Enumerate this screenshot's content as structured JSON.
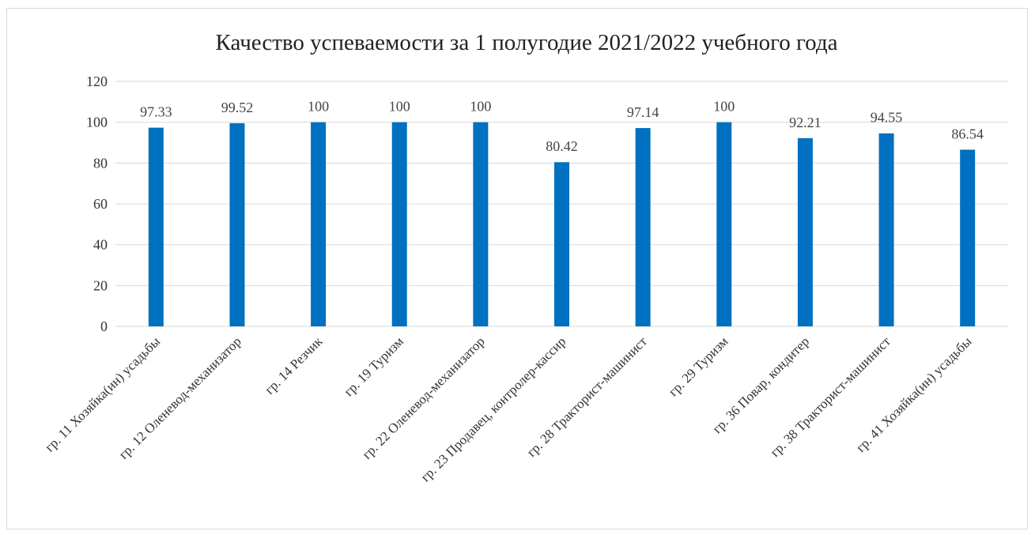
{
  "chart_data": {
    "type": "bar",
    "title": "Качество успеваемости за 1 полугодие 2021/2022 учебного года",
    "xlabel": "",
    "ylabel": "",
    "ylim": [
      0,
      120
    ],
    "yticks": [
      "0",
      "20",
      "40",
      "60",
      "80",
      "100",
      "120"
    ],
    "grid": true,
    "legend": "none",
    "bar_color": "#0070C0",
    "grid_color": "#d9d9d9",
    "categories": [
      "гр. 11 Хозяйка(ин) усадьбы",
      "гр. 12 Оленевод-механизатор",
      "гр. 14 Резчик",
      "гр. 19 Туризм",
      "гр. 22 Оленевод-механизатор",
      "гр. 23 Продавец, контролер-кассир",
      "гр. 28 Тракторист-машинист",
      "гр. 29 Туризм",
      "гр. 36 Повар, кондитер",
      "гр. 38 Тракторист-машинист",
      "гр. 41 Хозяйка(ин) усадьбы"
    ],
    "values": [
      97.33,
      99.52,
      100,
      100,
      100,
      80.42,
      97.14,
      100,
      92.21,
      94.55,
      86.54
    ],
    "value_labels": [
      "97.33",
      "99.52",
      "100",
      "100",
      "100",
      "80.42",
      "97.14",
      "100",
      "92.21",
      "94.55",
      "86.54"
    ]
  }
}
